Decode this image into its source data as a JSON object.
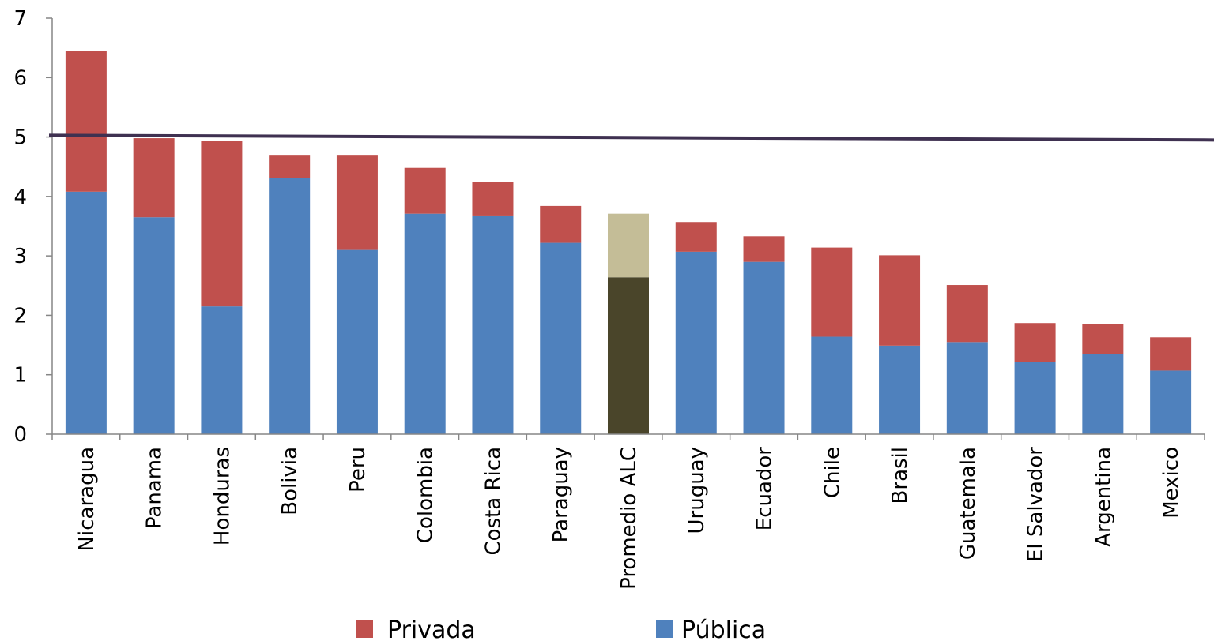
{
  "chart_data": {
    "type": "bar",
    "stacked": true,
    "categories": [
      "Nicaragua",
      "Panama",
      "Honduras",
      "Bolivia",
      "Peru",
      "Colombia",
      "Costa Rica",
      "Paraguay",
      "Promedio ALC",
      "Uruguay",
      "Ecuador",
      "Chile",
      "Brasil",
      "Guatemala",
      "El Salvador",
      "Argentina",
      "Mexico"
    ],
    "series": [
      {
        "name": "Pública",
        "color": "#4F81BD",
        "values": [
          4.08,
          3.65,
          2.15,
          4.31,
          3.1,
          3.71,
          3.68,
          3.22,
          2.64,
          3.07,
          2.9,
          1.64,
          1.49,
          1.55,
          1.22,
          1.35,
          1.07
        ]
      },
      {
        "name": "Privada",
        "color": "#C0504D",
        "values": [
          2.37,
          1.33,
          2.79,
          0.39,
          1.6,
          0.77,
          0.57,
          0.62,
          1.07,
          0.5,
          0.43,
          1.5,
          1.52,
          0.96,
          0.65,
          0.5,
          0.56
        ]
      }
    ],
    "highlight": {
      "category": "Promedio ALC",
      "public_color": "#4A452A",
      "private_color": "#C4BD97"
    },
    "reference_line": {
      "y_start": 5.03,
      "y_end": 4.95,
      "color": "#3F3151"
    },
    "ylim": [
      0,
      7
    ],
    "yticks": [
      0,
      1,
      2,
      3,
      4,
      5,
      6,
      7
    ],
    "grid": false,
    "legend": {
      "position": "bottom",
      "entries": [
        "Privada",
        "Pública"
      ]
    }
  }
}
